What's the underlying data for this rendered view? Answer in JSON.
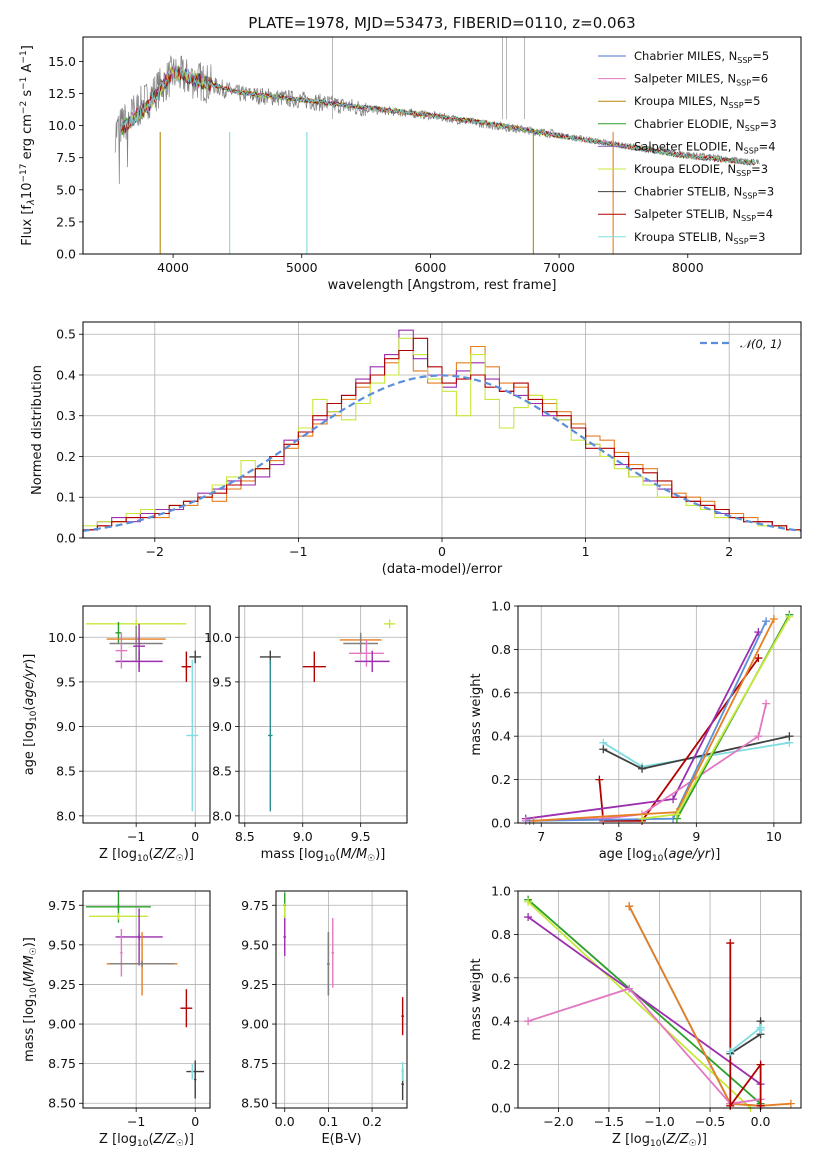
{
  "chart_data": [
    {
      "id": "spectrum",
      "type": "line",
      "title": "PLATE=1978, MJD=53473, FIBERID=0110, z=0.063",
      "xlabel": "wavelength [Angstrom, rest frame]",
      "ylabel": "Flux [f_λ 10^-17 erg cm^-2 s^-1 A^-1]",
      "xlim": [
        3300,
        8880
      ],
      "ylim": [
        0,
        16.9
      ],
      "xticks": [
        4000,
        5000,
        6000,
        7000,
        8000
      ],
      "yticks": [
        0.0,
        2.5,
        5.0,
        7.5,
        10.0,
        12.5,
        15.0
      ],
      "grid": false,
      "legend_position": "upper-right",
      "observed": {
        "color": "#808080",
        "x": [
          3550,
          3800,
          4000,
          4200,
          4500,
          5000,
          5500,
          6000,
          6500,
          7000,
          7500,
          8000,
          8500
        ],
        "y": [
          9.5,
          12.0,
          14.0,
          13.5,
          12.5,
          12.0,
          11.3,
          10.8,
          10.0,
          9.3,
          8.5,
          7.8,
          7.2
        ]
      },
      "series": [
        {
          "name": "Chabrier MILES, N_SSP=5",
          "color": "#4a6fd1"
        },
        {
          "name": "Salpeter MILES, N_SSP=6",
          "color": "#e377c2"
        },
        {
          "name": "Kroupa MILES, N_SSP=5",
          "color": "#b8860b"
        },
        {
          "name": "Chabrier ELODIE, N_SSP=3",
          "color": "#2ca02c"
        },
        {
          "name": "Salpeter ELODIE, N_SSP=4",
          "color": "#9467bd"
        },
        {
          "name": "Kroupa ELODIE, N_SSP=3",
          "color": "#c7e83a"
        },
        {
          "name": "Chabrier STELIB, N_SSP=3",
          "color": "#404040"
        },
        {
          "name": "Salpeter STELIB, N_SSP=4",
          "color": "#b00000"
        },
        {
          "name": "Kroupa STELIB, N_SSP=3",
          "color": "#7fdde0"
        }
      ],
      "model": {
        "x": [
          3550,
          3800,
          4000,
          4200,
          4500,
          5000,
          5500,
          6000,
          6500,
          7000,
          7500,
          8000,
          8500
        ],
        "y": [
          9.3,
          11.5,
          14.2,
          13.5,
          12.6,
          12.0,
          11.4,
          10.8,
          10.1,
          9.2,
          8.4,
          7.6,
          7.1
        ]
      }
    },
    {
      "id": "residuals",
      "type": "step-histogram",
      "xlabel": "(data-model)/error",
      "ylabel": "Normed distribution",
      "xlim": [
        -2.5,
        2.5
      ],
      "ylim": [
        0,
        0.53
      ],
      "xticks": [
        -2,
        -1,
        0,
        1,
        2
      ],
      "yticks": [
        0.0,
        0.1,
        0.2,
        0.3,
        0.4,
        0.5
      ],
      "grid": true,
      "legend": "N(0,1)",
      "legend_position": "upper-right",
      "bin_edges_start": -2.5,
      "bin_width": 0.1,
      "series": [
        {
          "color": "#e67e22",
          "values": [
            0.02,
            0.03,
            0.04,
            0.05,
            0.06,
            0.05,
            0.07,
            0.08,
            0.1,
            0.09,
            0.12,
            0.14,
            0.17,
            0.19,
            0.22,
            0.25,
            0.28,
            0.3,
            0.34,
            0.37,
            0.4,
            0.43,
            0.46,
            0.41,
            0.38,
            0.4,
            0.43,
            0.47,
            0.42,
            0.38,
            0.37,
            0.35,
            0.33,
            0.31,
            0.28,
            0.25,
            0.24,
            0.21,
            0.18,
            0.17,
            0.13,
            0.11,
            0.1,
            0.09,
            0.07,
            0.06,
            0.05,
            0.04,
            0.03,
            0.02
          ]
        },
        {
          "color": "#9b2fae",
          "values": [
            0.02,
            0.04,
            0.05,
            0.04,
            0.06,
            0.07,
            0.07,
            0.09,
            0.11,
            0.12,
            0.14,
            0.13,
            0.15,
            0.18,
            0.24,
            0.26,
            0.29,
            0.31,
            0.35,
            0.39,
            0.42,
            0.45,
            0.51,
            0.44,
            0.4,
            0.37,
            0.41,
            0.43,
            0.39,
            0.36,
            0.35,
            0.33,
            0.3,
            0.29,
            0.27,
            0.23,
            0.2,
            0.18,
            0.15,
            0.14,
            0.12,
            0.1,
            0.09,
            0.08,
            0.06,
            0.05,
            0.04,
            0.04,
            0.03,
            0.02
          ]
        },
        {
          "color": "#c7e83a",
          "values": [
            0.03,
            0.04,
            0.04,
            0.06,
            0.07,
            0.06,
            0.08,
            0.09,
            0.1,
            0.13,
            0.15,
            0.19,
            0.17,
            0.2,
            0.23,
            0.27,
            0.34,
            0.31,
            0.29,
            0.33,
            0.38,
            0.4,
            0.49,
            0.45,
            0.39,
            0.36,
            0.3,
            0.45,
            0.34,
            0.27,
            0.32,
            0.35,
            0.34,
            0.29,
            0.24,
            0.23,
            0.2,
            0.17,
            0.15,
            0.13,
            0.1,
            0.1,
            0.08,
            0.07,
            0.05,
            0.05,
            0.04,
            0.03,
            0.03,
            0.02
          ]
        },
        {
          "color": "#b00000",
          "values": [
            0.02,
            0.03,
            0.04,
            0.05,
            0.05,
            0.06,
            0.08,
            0.09,
            0.1,
            0.11,
            0.13,
            0.15,
            0.17,
            0.2,
            0.23,
            0.26,
            0.3,
            0.33,
            0.35,
            0.38,
            0.4,
            0.44,
            0.46,
            0.49,
            0.42,
            0.38,
            0.39,
            0.4,
            0.37,
            0.36,
            0.38,
            0.34,
            0.31,
            0.3,
            0.27,
            0.22,
            0.22,
            0.2,
            0.17,
            0.16,
            0.14,
            0.1,
            0.09,
            0.08,
            0.07,
            0.05,
            0.04,
            0.04,
            0.03,
            0.02
          ]
        }
      ],
      "gaussian": {
        "color": "#5b8fd9",
        "mu": 0,
        "sigma": 1
      }
    },
    {
      "id": "age-vs-Z",
      "type": "errorbar",
      "xlabel": "Z [log10(Z/Z☉)]",
      "ylabel": "age [log10(age/yr)]",
      "xlim": [
        -1.9,
        0.25
      ],
      "ylim": [
        7.92,
        10.35
      ],
      "xticks": [
        -1,
        0
      ],
      "yticks": [
        8.0,
        8.5,
        9.0,
        9.5,
        10.0
      ],
      "grid": true,
      "points": [
        {
          "x": -1.0,
          "xerr": 0.85,
          "y": 10.15,
          "yerr": 0.05,
          "color": "#c7e83a"
        },
        {
          "x": -1.3,
          "xerr": 0.05,
          "y": 10.05,
          "yerr": 0.12,
          "color": "#2ca02c"
        },
        {
          "x": -1.0,
          "xerr": 0.5,
          "y": 9.98,
          "yerr": 0.06,
          "color": "#e67e22"
        },
        {
          "x": -1.0,
          "xerr": 0.45,
          "y": 9.93,
          "yerr": 0.2,
          "color": "#808080"
        },
        {
          "x": -0.95,
          "xerr": 0.4,
          "y": 9.73,
          "yerr": 0.12,
          "color": "#9b2fae"
        },
        {
          "x": -0.95,
          "xerr": 0.1,
          "y": 9.9,
          "yerr": 0.25,
          "color": "#9b2fae"
        },
        {
          "x": -1.25,
          "xerr": 0.1,
          "y": 9.85,
          "yerr": 0.2,
          "color": "#e377c2"
        },
        {
          "x": -0.15,
          "xerr": 0.08,
          "y": 9.67,
          "yerr": 0.17,
          "color": "#b00000"
        },
        {
          "x": 0.0,
          "xerr": 0.1,
          "y": 9.78,
          "yerr": 0.07,
          "color": "#404040"
        },
        {
          "x": -0.05,
          "xerr": 0.1,
          "y": 8.9,
          "yerr": 0.85,
          "color": "#7fdde0"
        }
      ]
    },
    {
      "id": "age-vs-mass",
      "type": "errorbar",
      "xlabel": "mass [log10(M/M☉)]",
      "ylabel": "",
      "xlim": [
        8.45,
        9.9
      ],
      "ylim": [
        7.92,
        10.35
      ],
      "xticks": [
        8.5,
        9.0,
        9.5
      ],
      "yticks": [
        8.0,
        8.5,
        9.0,
        9.5,
        10.0
      ],
      "grid": true,
      "points": [
        {
          "x": 8.72,
          "xerr": 0.09,
          "y": 9.78,
          "yerr": 0.07,
          "color": "#404040"
        },
        {
          "x": 8.72,
          "xerr": 0.02,
          "y": 8.9,
          "yerr": 0.85,
          "color": "#2a8f8f"
        },
        {
          "x": 9.1,
          "xerr": 0.1,
          "y": 9.67,
          "yerr": 0.17,
          "color": "#b00000"
        },
        {
          "x": 9.5,
          "xerr": 0.18,
          "y": 9.97,
          "yerr": 0.05,
          "color": "#e67e22"
        },
        {
          "x": 9.5,
          "xerr": 0.15,
          "y": 9.93,
          "yerr": 0.12,
          "color": "#808080"
        },
        {
          "x": 9.55,
          "xerr": 0.15,
          "y": 9.82,
          "yerr": 0.15,
          "color": "#e377c2"
        },
        {
          "x": 9.6,
          "xerr": 0.15,
          "y": 9.73,
          "yerr": 0.12,
          "color": "#9b2fae"
        },
        {
          "x": 9.75,
          "xerr": 0.05,
          "y": 10.15,
          "yerr": 0.05,
          "color": "#c7e83a"
        }
      ]
    },
    {
      "id": "massweight-vs-age",
      "type": "line",
      "xlabel": "age [log10(age/yr)]",
      "ylabel": "mass weight",
      "xlim": [
        6.7,
        10.35
      ],
      "ylim": [
        0,
        1
      ],
      "xticks": [
        7,
        8,
        9,
        10
      ],
      "yticks": [
        0.0,
        0.2,
        0.4,
        0.6,
        0.8,
        1.0
      ],
      "grid": true,
      "series": [
        {
          "color": "#7fdde0",
          "x": [
            7.8,
            8.3,
            10.2
          ],
          "y": [
            0.37,
            0.26,
            0.37
          ]
        },
        {
          "color": "#404040",
          "x": [
            7.8,
            8.3,
            10.2
          ],
          "y": [
            0.34,
            0.25,
            0.4
          ]
        },
        {
          "color": "#b00000",
          "x": [
            7.75,
            7.8,
            8.3,
            9.8
          ],
          "y": [
            0.2,
            0.01,
            0.01,
            0.76
          ]
        },
        {
          "color": "#9b2fae",
          "x": [
            6.8,
            8.7,
            9.8
          ],
          "y": [
            0.02,
            0.11,
            0.88
          ]
        },
        {
          "color": "#e377c2",
          "x": [
            6.8,
            7.8,
            8.3,
            9.8,
            9.9
          ],
          "y": [
            0.01,
            0.02,
            0.04,
            0.4,
            0.55
          ]
        },
        {
          "color": "#5b8fd9",
          "x": [
            6.85,
            8.7,
            9.9
          ],
          "y": [
            0.01,
            0.02,
            0.93
          ]
        },
        {
          "color": "#e67e22",
          "x": [
            6.9,
            8.75,
            10.0
          ],
          "y": [
            0.01,
            0.05,
            0.94
          ]
        },
        {
          "color": "#2ca02c",
          "x": [
            8.75,
            10.2
          ],
          "y": [
            0.02,
            0.96
          ]
        },
        {
          "color": "#c7e83a",
          "x": [
            8.3,
            8.75,
            10.2
          ],
          "y": [
            0.02,
            0.04,
            0.95
          ]
        }
      ]
    },
    {
      "id": "mass-vs-Z",
      "type": "errorbar",
      "xlabel": "Z [log10(Z/Z☉)]",
      "ylabel": "mass [log10(M/M☉)]",
      "xlim": [
        -1.9,
        0.25
      ],
      "ylim": [
        8.47,
        9.84
      ],
      "xticks": [
        -1,
        0
      ],
      "yticks": [
        8.5,
        8.75,
        9.0,
        9.25,
        9.5,
        9.75
      ],
      "grid": true,
      "points": [
        {
          "x": -1.3,
          "xerr": 0.55,
          "y": 9.74,
          "yerr": 0.02,
          "color": "#2ca02c"
        },
        {
          "x": -1.3,
          "xerr": 0.02,
          "y": 9.74,
          "yerr": 0.1,
          "color": "#2ca02c"
        },
        {
          "x": -1.3,
          "xerr": 0.5,
          "y": 9.68,
          "yerr": 0.02,
          "color": "#c7e83a"
        },
        {
          "x": -0.95,
          "xerr": 0.4,
          "y": 9.55,
          "yerr": 0.02,
          "color": "#9b2fae"
        },
        {
          "x": -0.95,
          "xerr": 0.02,
          "y": 9.55,
          "yerr": 0.18,
          "color": "#9b2fae"
        },
        {
          "x": -1.25,
          "xerr": 0.02,
          "y": 9.45,
          "yerr": 0.15,
          "color": "#e377c2"
        },
        {
          "x": -0.9,
          "xerr": 0.6,
          "y": 9.38,
          "yerr": 0.02,
          "color": "#e67e22"
        },
        {
          "x": -0.9,
          "xerr": 0.02,
          "y": 9.38,
          "yerr": 0.2,
          "color": "#e67e22"
        },
        {
          "x": -0.9,
          "xerr": 0.55,
          "y": 9.38,
          "yerr": 0.02,
          "color": "#808080"
        },
        {
          "x": -0.15,
          "xerr": 0.1,
          "y": 9.1,
          "yerr": 0.12,
          "color": "#b00000"
        },
        {
          "x": 0.0,
          "xerr": 0.15,
          "y": 8.7,
          "yerr": 0.02,
          "color": "#404040"
        },
        {
          "x": 0.0,
          "xerr": 0.02,
          "y": 8.65,
          "yerr": 0.12,
          "color": "#404040"
        },
        {
          "x": -0.05,
          "xerr": 0.02,
          "y": 8.7,
          "yerr": 0.05,
          "color": "#7fdde0"
        }
      ]
    },
    {
      "id": "mass-vs-EBV",
      "type": "errorbar",
      "xlabel": "E(B-V)",
      "ylabel": "",
      "xlim": [
        -0.02,
        0.28
      ],
      "ylim": [
        8.47,
        9.84
      ],
      "xticks": [
        0.0,
        0.1,
        0.2
      ],
      "yticks": [
        8.5,
        8.75,
        9.0,
        9.25,
        9.5,
        9.75
      ],
      "grid": true,
      "points": [
        {
          "x": 0.0,
          "xerr": 0.003,
          "y": 9.75,
          "yerr": 0.08,
          "color": "#2ca02c"
        },
        {
          "x": 0.0,
          "xerr": 0.003,
          "y": 9.68,
          "yerr": 0.08,
          "color": "#c7e83a"
        },
        {
          "x": 0.0,
          "xerr": 0.003,
          "y": 9.55,
          "yerr": 0.12,
          "color": "#9b2fae"
        },
        {
          "x": 0.1,
          "xerr": 0.003,
          "y": 9.38,
          "yerr": 0.2,
          "color": "#e67e22"
        },
        {
          "x": 0.1,
          "xerr": 0.003,
          "y": 9.38,
          "yerr": 0.2,
          "color": "#808080"
        },
        {
          "x": 0.11,
          "xerr": 0.003,
          "y": 9.45,
          "yerr": 0.22,
          "color": "#e377c2"
        },
        {
          "x": 0.27,
          "xerr": 0.003,
          "y": 9.05,
          "yerr": 0.12,
          "color": "#b00000"
        },
        {
          "x": 0.27,
          "xerr": 0.003,
          "y": 8.62,
          "yerr": 0.1,
          "color": "#404040"
        },
        {
          "x": 0.27,
          "xerr": 0.003,
          "y": 8.7,
          "yerr": 0.06,
          "color": "#7fdde0"
        }
      ]
    },
    {
      "id": "massweight-vs-Z",
      "type": "line",
      "xlabel": "Z [log10(Z/Z☉)]",
      "ylabel": "mass weight",
      "xlim": [
        -2.4,
        0.4
      ],
      "ylim": [
        0,
        1
      ],
      "xticks": [
        -2.0,
        -1.5,
        -1.0,
        -0.5,
        0.0
      ],
      "yticks": [
        0.0,
        0.2,
        0.4,
        0.6,
        0.8,
        1.0
      ],
      "grid": true,
      "series": [
        {
          "color": "#2ca02c",
          "x": [
            -2.3,
            0.0
          ],
          "y": [
            0.96,
            0.02
          ]
        },
        {
          "color": "#c7e83a",
          "x": [
            -2.3,
            -0.1
          ],
          "y": [
            0.95,
            0.0
          ]
        },
        {
          "color": "#9b2fae",
          "x": [
            -2.3,
            0.0
          ],
          "y": [
            0.88,
            0.11
          ]
        },
        {
          "color": "#5b8fd9",
          "x": [
            -1.3,
            -0.3,
            0.0
          ],
          "y": [
            0.93,
            0.02,
            0.01
          ]
        },
        {
          "color": "#e67e22",
          "x": [
            -1.3,
            -0.3,
            0.0,
            0.3
          ],
          "y": [
            0.93,
            0.02,
            0.01,
            0.02
          ]
        },
        {
          "color": "#e377c2",
          "x": [
            -2.3,
            -1.3,
            -0.3,
            0.0
          ],
          "y": [
            0.4,
            0.55,
            0.02,
            0.04
          ]
        },
        {
          "color": "#b00000",
          "x": [
            -0.3,
            -0.3,
            0.0,
            0.0
          ],
          "y": [
            0.76,
            0.01,
            0.2,
            0.01
          ]
        },
        {
          "color": "#404040",
          "x": [
            -0.3,
            0.0,
            0.0
          ],
          "y": [
            0.25,
            0.34,
            0.4
          ]
        },
        {
          "color": "#7fdde0",
          "x": [
            -0.3,
            0.0,
            0.0
          ],
          "y": [
            0.26,
            0.37,
            0.36
          ]
        }
      ]
    }
  ]
}
